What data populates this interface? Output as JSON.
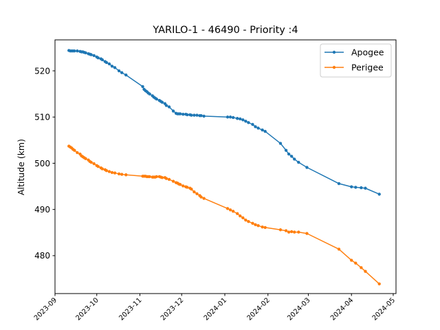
{
  "chart_data": {
    "type": "line",
    "title": "YARILO-1 - 46490 - Priority :4",
    "xlabel": "",
    "ylabel": "Altitude (km)",
    "xlim": [
      "2023-09-01",
      "2024-05-03"
    ],
    "ylim": [
      471.8,
      526.7
    ],
    "yticks": [
      480,
      490,
      500,
      510,
      520
    ],
    "xticks": [
      "2023-09",
      "2023-10",
      "2023-11",
      "2023-12",
      "2024-01",
      "2024-02",
      "2024-03",
      "2024-04",
      "2024-05"
    ],
    "grid": false,
    "legend": "top-right",
    "colors": {
      "Apogee": "#1f77b4",
      "Perigee": "#ff7f0e"
    },
    "series": [
      {
        "name": "Apogee",
        "points": [
          [
            "2023-09-11",
            524.4
          ],
          [
            "2023-09-12",
            524.3
          ],
          [
            "2023-09-13",
            524.3
          ],
          [
            "2023-09-14",
            524.3
          ],
          [
            "2023-09-15",
            524.3
          ],
          [
            "2023-09-17",
            524.3
          ],
          [
            "2023-09-19",
            524.2
          ],
          [
            "2023-09-20",
            524.1
          ],
          [
            "2023-09-21",
            524.1
          ],
          [
            "2023-09-22",
            524.0
          ],
          [
            "2023-09-23",
            523.9
          ],
          [
            "2023-09-25",
            523.7
          ],
          [
            "2023-09-26",
            523.6
          ],
          [
            "2023-09-27",
            523.5
          ],
          [
            "2023-09-29",
            523.3
          ],
          [
            "2023-10-01",
            523.0
          ],
          [
            "2023-10-02",
            522.8
          ],
          [
            "2023-10-04",
            522.6
          ],
          [
            "2023-10-05",
            522.4
          ],
          [
            "2023-10-07",
            522.0
          ],
          [
            "2023-10-08",
            521.8
          ],
          [
            "2023-10-10",
            521.5
          ],
          [
            "2023-10-12",
            521.0
          ],
          [
            "2023-10-14",
            520.7
          ],
          [
            "2023-10-17",
            520.0
          ],
          [
            "2023-10-19",
            519.6
          ],
          [
            "2023-10-22",
            519.1
          ],
          [
            "2023-11-03",
            516.6
          ],
          [
            "2023-11-04",
            516.0
          ],
          [
            "2023-11-05",
            515.7
          ],
          [
            "2023-11-06",
            515.5
          ],
          [
            "2023-11-07",
            515.2
          ],
          [
            "2023-11-08",
            515.0
          ],
          [
            "2023-11-10",
            514.6
          ],
          [
            "2023-11-11",
            514.3
          ],
          [
            "2023-11-12",
            514.1
          ],
          [
            "2023-11-13",
            513.9
          ],
          [
            "2023-11-15",
            513.6
          ],
          [
            "2023-11-16",
            513.4
          ],
          [
            "2023-11-17",
            513.2
          ],
          [
            "2023-11-19",
            512.9
          ],
          [
            "2023-11-20",
            512.5
          ],
          [
            "2023-11-22",
            512.2
          ],
          [
            "2023-11-25",
            511.3
          ],
          [
            "2023-11-27",
            510.8
          ],
          [
            "2023-11-28",
            510.7
          ],
          [
            "2023-11-29",
            510.7
          ],
          [
            "2023-11-30",
            510.7
          ],
          [
            "2023-12-02",
            510.6
          ],
          [
            "2023-12-04",
            510.6
          ],
          [
            "2023-12-05",
            510.5
          ],
          [
            "2023-12-07",
            510.5
          ],
          [
            "2023-12-08",
            510.4
          ],
          [
            "2023-12-10",
            510.4
          ],
          [
            "2023-12-12",
            510.4
          ],
          [
            "2023-12-14",
            510.3
          ],
          [
            "2023-12-15",
            510.3
          ],
          [
            "2023-12-17",
            510.2
          ],
          [
            "2024-01-03",
            510.0
          ],
          [
            "2024-01-05",
            510.0
          ],
          [
            "2024-01-07",
            509.9
          ],
          [
            "2024-01-10",
            509.7
          ],
          [
            "2024-01-12",
            509.6
          ],
          [
            "2024-01-14",
            509.4
          ],
          [
            "2024-01-16",
            509.1
          ],
          [
            "2024-01-18",
            508.8
          ],
          [
            "2024-01-21",
            508.4
          ],
          [
            "2024-01-23",
            507.9
          ],
          [
            "2024-01-25",
            507.6
          ],
          [
            "2024-01-28",
            507.2
          ],
          [
            "2024-01-30",
            506.9
          ],
          [
            "2024-02-10",
            504.3
          ],
          [
            "2024-02-14",
            502.8
          ],
          [
            "2024-02-16",
            502.0
          ],
          [
            "2024-02-18",
            501.5
          ],
          [
            "2024-02-20",
            500.9
          ],
          [
            "2024-02-23",
            500.2
          ],
          [
            "2024-02-29",
            499.1
          ],
          [
            "2024-03-23",
            495.6
          ],
          [
            "2024-04-01",
            494.9
          ],
          [
            "2024-04-04",
            494.8
          ],
          [
            "2024-04-08",
            494.7
          ],
          [
            "2024-04-11",
            494.6
          ],
          [
            "2024-04-21",
            493.3
          ]
        ]
      },
      {
        "name": "Perigee",
        "points": [
          [
            "2023-09-11",
            503.7
          ],
          [
            "2023-09-12",
            503.5
          ],
          [
            "2023-09-13",
            503.3
          ],
          [
            "2023-09-14",
            503.0
          ],
          [
            "2023-09-15",
            502.8
          ],
          [
            "2023-09-17",
            502.3
          ],
          [
            "2023-09-19",
            502.0
          ],
          [
            "2023-09-20",
            501.6
          ],
          [
            "2023-09-21",
            501.4
          ],
          [
            "2023-09-22",
            501.2
          ],
          [
            "2023-09-23",
            501.0
          ],
          [
            "2023-09-25",
            500.7
          ],
          [
            "2023-09-26",
            500.4
          ],
          [
            "2023-09-27",
            500.2
          ],
          [
            "2023-09-29",
            499.9
          ],
          [
            "2023-10-01",
            499.5
          ],
          [
            "2023-10-02",
            499.3
          ],
          [
            "2023-10-04",
            499.0
          ],
          [
            "2023-10-05",
            498.8
          ],
          [
            "2023-10-07",
            498.6
          ],
          [
            "2023-10-08",
            498.4
          ],
          [
            "2023-10-10",
            498.2
          ],
          [
            "2023-10-12",
            498.0
          ],
          [
            "2023-10-14",
            497.9
          ],
          [
            "2023-10-17",
            497.7
          ],
          [
            "2023-10-19",
            497.6
          ],
          [
            "2023-10-22",
            497.5
          ],
          [
            "2023-11-03",
            497.2
          ],
          [
            "2023-11-04",
            497.2
          ],
          [
            "2023-11-05",
            497.2
          ],
          [
            "2023-11-06",
            497.1
          ],
          [
            "2023-11-07",
            497.1
          ],
          [
            "2023-11-08",
            497.1
          ],
          [
            "2023-11-10",
            497.0
          ],
          [
            "2023-11-11",
            497.0
          ],
          [
            "2023-11-12",
            497.0
          ],
          [
            "2023-11-13",
            497.1
          ],
          [
            "2023-11-15",
            497.1
          ],
          [
            "2023-11-16",
            497.0
          ],
          [
            "2023-11-17",
            496.9
          ],
          [
            "2023-11-19",
            496.9
          ],
          [
            "2023-11-20",
            496.7
          ],
          [
            "2023-11-22",
            496.5
          ],
          [
            "2023-11-25",
            496.1
          ],
          [
            "2023-11-27",
            495.8
          ],
          [
            "2023-11-28",
            495.7
          ],
          [
            "2023-11-29",
            495.5
          ],
          [
            "2023-11-30",
            495.4
          ],
          [
            "2023-12-02",
            495.1
          ],
          [
            "2023-12-04",
            494.9
          ],
          [
            "2023-12-05",
            494.8
          ],
          [
            "2023-12-07",
            494.6
          ],
          [
            "2023-12-08",
            494.4
          ],
          [
            "2023-12-10",
            493.8
          ],
          [
            "2023-12-12",
            493.4
          ],
          [
            "2023-12-14",
            493.0
          ],
          [
            "2023-12-15",
            492.7
          ],
          [
            "2023-12-17",
            492.4
          ],
          [
            "2024-01-03",
            490.2
          ],
          [
            "2024-01-05",
            489.9
          ],
          [
            "2024-01-07",
            489.6
          ],
          [
            "2024-01-10",
            489.1
          ],
          [
            "2024-01-12",
            488.6
          ],
          [
            "2024-01-14",
            488.2
          ],
          [
            "2024-01-16",
            487.7
          ],
          [
            "2024-01-18",
            487.4
          ],
          [
            "2024-01-21",
            487.0
          ],
          [
            "2024-01-23",
            486.7
          ],
          [
            "2024-01-25",
            486.5
          ],
          [
            "2024-01-28",
            486.2
          ],
          [
            "2024-01-30",
            486.1
          ],
          [
            "2024-02-10",
            485.6
          ],
          [
            "2024-02-14",
            485.4
          ],
          [
            "2024-02-16",
            485.1
          ],
          [
            "2024-02-18",
            485.2
          ],
          [
            "2024-02-20",
            485.1
          ],
          [
            "2024-02-23",
            485.1
          ],
          [
            "2024-02-29",
            484.8
          ],
          [
            "2024-03-23",
            481.4
          ],
          [
            "2024-04-01",
            479.0
          ],
          [
            "2024-04-04",
            478.4
          ],
          [
            "2024-04-08",
            477.4
          ],
          [
            "2024-04-11",
            476.6
          ],
          [
            "2024-04-21",
            473.9
          ]
        ]
      }
    ]
  }
}
